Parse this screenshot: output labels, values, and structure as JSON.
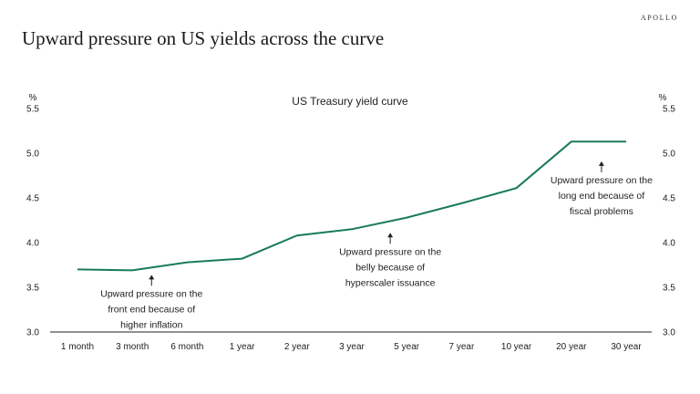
{
  "brand": "APOLLO",
  "page_title": "Upward pressure on US yields across the curve",
  "colors": {
    "line": "#1a7a5e",
    "axis": "#222222",
    "text": "#222222"
  },
  "chart_data": {
    "type": "line",
    "title": "US Treasury yield curve",
    "left_unit": "%",
    "right_unit": "%",
    "categories": [
      "1 month",
      "3 month",
      "6 month",
      "1 year",
      "2 year",
      "3 year",
      "5 year",
      "7 year",
      "10 year",
      "20 year",
      "30 year"
    ],
    "series": [
      {
        "values": [
          3.7,
          3.69,
          3.78,
          3.82,
          4.08,
          4.15,
          4.28,
          4.44,
          4.61,
          5.13,
          5.13
        ]
      }
    ],
    "ylim": [
      3.0,
      5.5
    ],
    "yticks": [
      "3.0",
      "3.5",
      "4.0",
      "4.5",
      "5.0",
      "5.5"
    ],
    "grid": false,
    "annotations": [
      {
        "lines": [
          "Upward pressure on the",
          "front end because of",
          "higher inflation"
        ],
        "x_index": 1.35,
        "y_value": 3.68,
        "position": "below"
      },
      {
        "lines": [
          "Upward pressure on the",
          "belly because of",
          "hyperscaler issuance"
        ],
        "x_index": 5.7,
        "y_value": 4.15,
        "position": "below"
      },
      {
        "lines": [
          "Upward pressure on the",
          "long end because of",
          "fiscal problems"
        ],
        "x_index": 9.55,
        "y_value": 4.95,
        "position": "below"
      }
    ]
  }
}
